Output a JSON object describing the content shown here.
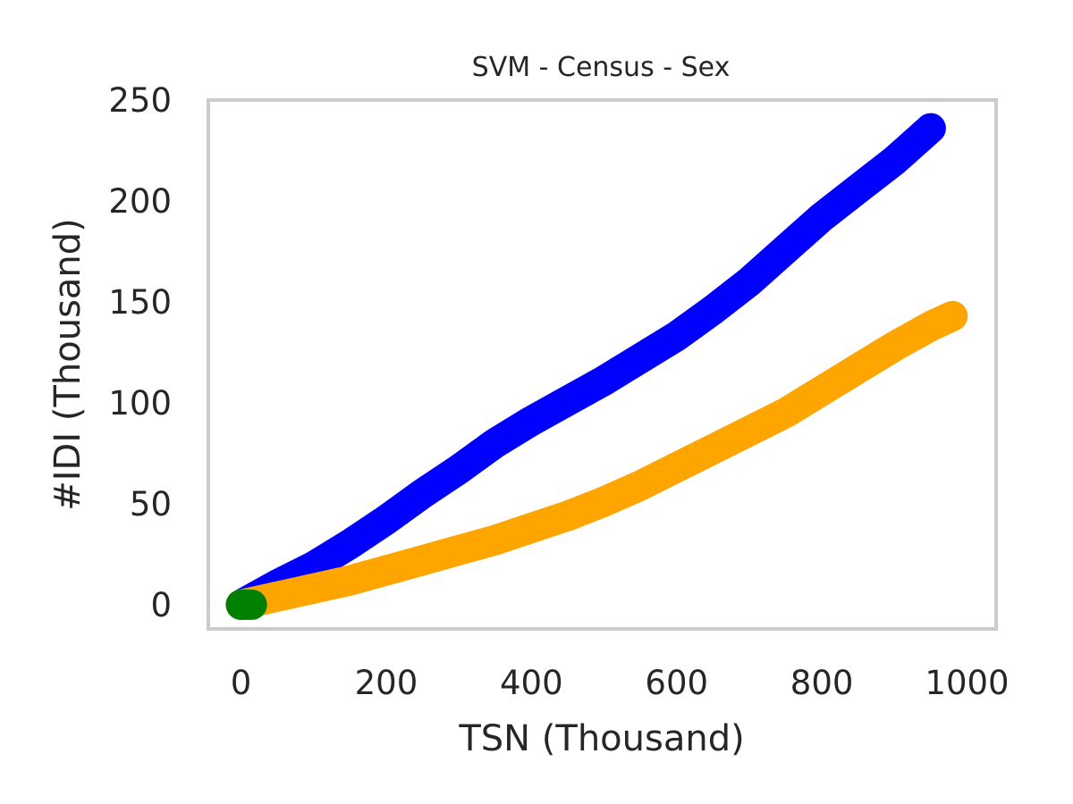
{
  "chart_data": {
    "type": "line",
    "title": "SVM - Census - Sex",
    "xlabel": "TSN (Thousand)",
    "ylabel": "#IDI (Thousand)",
    "xlim": [
      -45,
      1040
    ],
    "ylim": [
      -12,
      250
    ],
    "xticks": [
      0,
      200,
      400,
      600,
      800,
      1000
    ],
    "yticks": [
      0,
      50,
      100,
      150,
      200,
      250
    ],
    "grid": false,
    "legend": "none",
    "series": [
      {
        "color": "#0000ff",
        "x": [
          0,
          50,
          100,
          150,
          200,
          250,
          300,
          350,
          400,
          450,
          500,
          550,
          600,
          650,
          700,
          750,
          800,
          850,
          900,
          950
        ],
        "y": [
          0,
          10,
          19,
          30,
          42,
          55,
          67,
          80,
          91,
          101,
          111,
          122,
          133,
          146,
          160,
          176,
          192,
          206,
          220,
          236
        ]
      },
      {
        "color": "#ffa500",
        "x": [
          0,
          50,
          100,
          150,
          200,
          250,
          300,
          350,
          400,
          450,
          500,
          550,
          600,
          650,
          700,
          750,
          800,
          850,
          900,
          950,
          980
        ],
        "y": [
          0,
          4,
          8,
          12,
          17,
          22,
          27,
          32,
          38,
          44,
          51,
          59,
          68,
          77,
          86,
          95,
          106,
          117,
          128,
          138,
          143
        ]
      },
      {
        "color": "#008000",
        "x": [
          0,
          15
        ],
        "y": [
          0,
          0
        ]
      }
    ]
  }
}
